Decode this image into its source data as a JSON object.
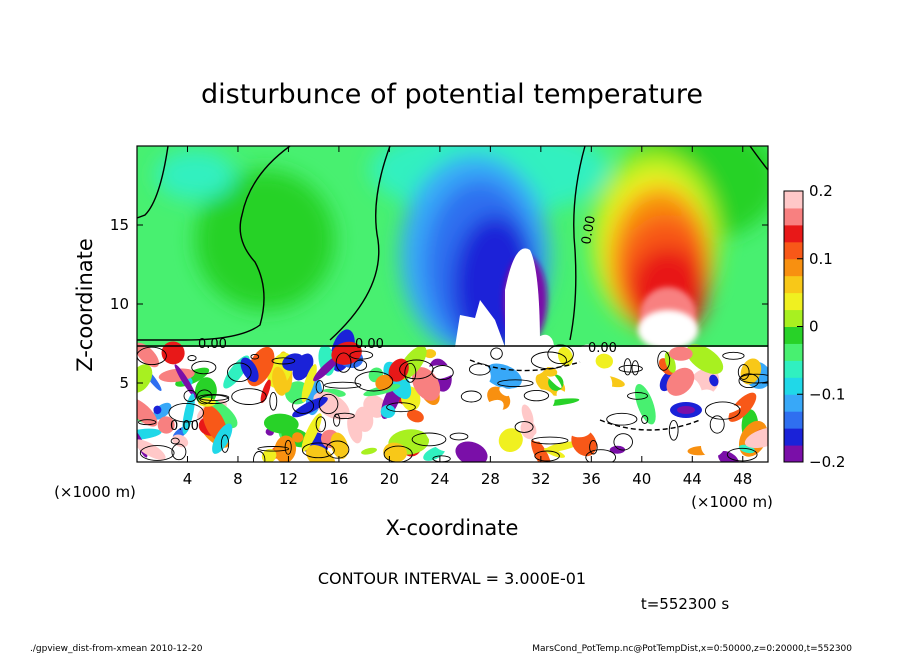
{
  "chart_data": {
    "type": "heatmap",
    "title": "disturbunce of potential temperature",
    "xlabel": "X-coordinate",
    "ylabel": "Z-coordinate",
    "x_unit": "(×1000 m)",
    "y_unit": "(×1000 m)",
    "xlim": [
      0,
      50
    ],
    "ylim": [
      0,
      20
    ],
    "x_ticks": [
      4,
      8,
      12,
      16,
      20,
      24,
      28,
      32,
      36,
      40,
      44,
      48
    ],
    "y_ticks": [
      5,
      10,
      15
    ],
    "colorbar": {
      "range": [
        -0.2,
        0.2
      ],
      "ticks": [
        {
          "value": 0.2,
          "label": "0.2"
        },
        {
          "value": 0.1,
          "label": "0.1"
        },
        {
          "value": 0,
          "label": "0"
        },
        {
          "value": -0.1,
          "label": "−0.1"
        },
        {
          "value": -0.2,
          "label": "−0.2"
        }
      ],
      "colors": [
        "#7a0fa8",
        "#1a22d8",
        "#2f6ff0",
        "#38a8f8",
        "#20d8e8",
        "#30f0c0",
        "#48f070",
        "#28d228",
        "#a8f020",
        "#f0f020",
        "#f8c818",
        "#f89010",
        "#f85818",
        "#e81818",
        "#f88080",
        "#ffc8c8"
      ]
    },
    "contour_labels": [
      "0.00",
      "0.00",
      "0.00",
      "0.00",
      "0.00"
    ],
    "contour_interval_text": "CONTOUR INTERVAL = 3.000E-01",
    "time_text": "t=552300 s"
  },
  "footer": {
    "left": "./gpview_dist-from-xmean  2010-12-20",
    "right": "MarsCond_PotTemp.nc@PotTempDist,x=0:50000,z=0:20000,t=552300"
  }
}
